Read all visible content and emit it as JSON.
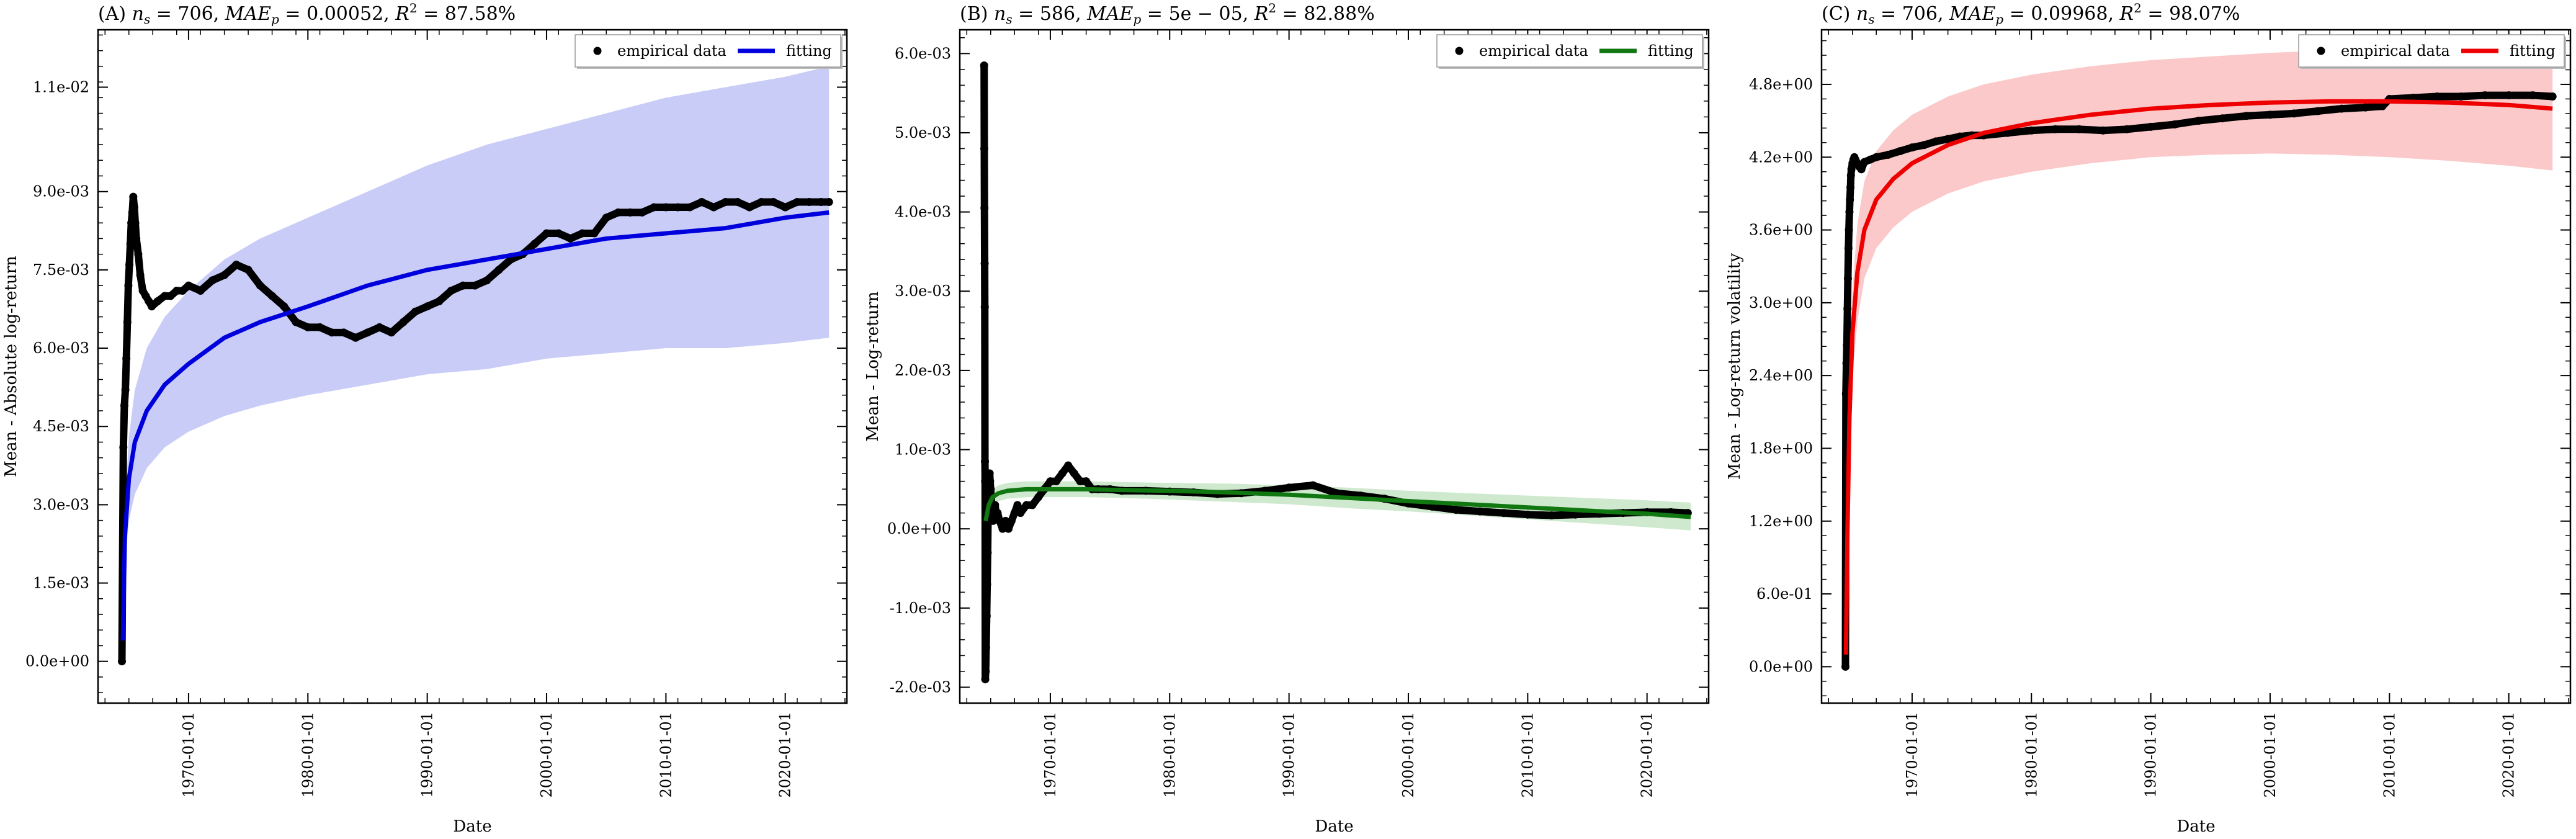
{
  "chart_data": [
    {
      "type": "scatter",
      "panel": "A",
      "title": "(A) n_s = 706, MAE_p = 0.00052, R^2 = 87.58%",
      "title_parts": {
        "prefix": "(A) ",
        "ns": "706",
        "mae": "0.00052",
        "r2": "87.58%"
      },
      "xlabel": "Date",
      "ylabel": "Mean - Absolute log-return",
      "xlim": [
        "1962-06-01",
        "2025-03-01"
      ],
      "ylim": [
        -0.0008,
        0.0121
      ],
      "xticks": [
        "1970-01-01",
        "1980-01-01",
        "1990-01-01",
        "2000-01-01",
        "2010-01-01",
        "2020-01-01"
      ],
      "yticks": [
        0.0,
        0.0015,
        0.003,
        0.0045,
        0.006,
        0.0075,
        0.009,
        0.011
      ],
      "ytick_labels": [
        "0.0e+00",
        "1.5e-03",
        "3.0e-03",
        "4.5e-03",
        "6.0e-03",
        "7.5e-03",
        "9.0e-03",
        "1.1e-02"
      ],
      "legend": {
        "position": "top-right",
        "entries": [
          "empirical data",
          "fitting"
        ]
      },
      "colors": {
        "fit": "#0000dd",
        "band": "#c9ccf7",
        "points": "#000000"
      },
      "grid": false,
      "empirical": {
        "x": [
          "1964-06-01",
          "1964-07-15",
          "1964-08-15",
          "1964-09-15",
          "1964-10-15",
          "1964-11-15",
          "1964-12-15",
          "1965-01-15",
          "1965-02-15",
          "1965-03-15",
          "1965-04-15",
          "1965-05-15",
          "1965-06-15",
          "1965-07-15",
          "1965-08-15",
          "1965-10-15",
          "1965-12-15",
          "1966-03-01",
          "1966-06-01",
          "1966-09-01",
          "1966-12-01",
          "1967-06-01",
          "1968-01-01",
          "1968-07-01",
          "1969-01-01",
          "1969-07-01",
          "1970-01-01",
          "1971-01-01",
          "1972-01-01",
          "1973-01-01",
          "1974-01-01",
          "1975-01-01",
          "1976-01-01",
          "1977-01-01",
          "1978-01-01",
          "1979-01-01",
          "1980-01-01",
          "1981-01-01",
          "1982-01-01",
          "1983-01-01",
          "1984-01-01",
          "1985-01-01",
          "1986-01-01",
          "1987-01-01",
          "1988-01-01",
          "1989-01-01",
          "1990-01-01",
          "1991-01-01",
          "1992-01-01",
          "1993-01-01",
          "1994-01-01",
          "1995-01-01",
          "1996-01-01",
          "1997-01-01",
          "1998-01-01",
          "1999-01-01",
          "2000-01-01",
          "2001-01-01",
          "2002-01-01",
          "2003-01-01",
          "2004-01-01",
          "2005-01-01",
          "2006-01-01",
          "2007-01-01",
          "2008-01-01",
          "2009-01-01",
          "2010-01-01",
          "2011-01-01",
          "2012-01-01",
          "2013-01-01",
          "2014-01-01",
          "2015-01-01",
          "2016-01-01",
          "2017-01-01",
          "2018-01-01",
          "2019-01-01",
          "2020-01-01",
          "2021-01-01",
          "2022-01-01",
          "2023-01-01",
          "2023-09-01"
        ],
        "y": [
          0.0,
          0.0041,
          0.0049,
          0.0052,
          0.0058,
          0.0065,
          0.0072,
          0.0076,
          0.008,
          0.0084,
          0.0086,
          0.0089,
          0.0087,
          0.0084,
          0.0081,
          0.0078,
          0.0074,
          0.0071,
          0.007,
          0.0069,
          0.0068,
          0.0069,
          0.007,
          0.007,
          0.0071,
          0.0071,
          0.0072,
          0.0071,
          0.0073,
          0.0074,
          0.0076,
          0.0075,
          0.0072,
          0.007,
          0.0068,
          0.0065,
          0.0064,
          0.0064,
          0.0063,
          0.0063,
          0.0062,
          0.0063,
          0.0064,
          0.0063,
          0.0065,
          0.0067,
          0.0068,
          0.0069,
          0.0071,
          0.0072,
          0.0072,
          0.0073,
          0.0075,
          0.0077,
          0.0078,
          0.008,
          0.0082,
          0.0082,
          0.0081,
          0.0082,
          0.0082,
          0.0085,
          0.0086,
          0.0086,
          0.0086,
          0.0087,
          0.0087,
          0.0087,
          0.0087,
          0.0088,
          0.0087,
          0.0088,
          0.0088,
          0.0087,
          0.0088,
          0.0088,
          0.0087,
          0.0088,
          0.0088,
          0.0088,
          0.0088
        ]
      },
      "fit": {
        "x": [
          "1964-07-01",
          "1964-09-01",
          "1965-01-01",
          "1965-07-01",
          "1966-07-01",
          "1968-01-01",
          "1970-01-01",
          "1973-01-01",
          "1976-01-01",
          "1980-01-01",
          "1985-01-01",
          "1990-01-01",
          "1995-01-01",
          "2000-01-01",
          "2005-01-01",
          "2010-01-01",
          "2015-01-01",
          "2020-01-01",
          "2023-09-01"
        ],
        "y": [
          0.0004,
          0.0024,
          0.0035,
          0.0042,
          0.0048,
          0.0053,
          0.0057,
          0.0062,
          0.0065,
          0.0068,
          0.0072,
          0.0075,
          0.0077,
          0.0079,
          0.0081,
          0.0082,
          0.0083,
          0.0085,
          0.0086
        ],
        "band_low": [
          0.0,
          0.0018,
          0.0027,
          0.0032,
          0.0037,
          0.0041,
          0.0044,
          0.0047,
          0.0049,
          0.0051,
          0.0053,
          0.0055,
          0.0056,
          0.0058,
          0.0059,
          0.006,
          0.006,
          0.0061,
          0.0062
        ],
        "band_high": [
          0.0009,
          0.003,
          0.0043,
          0.0052,
          0.006,
          0.0066,
          0.0071,
          0.0077,
          0.0081,
          0.0085,
          0.009,
          0.0095,
          0.0099,
          0.0102,
          0.0105,
          0.0108,
          0.011,
          0.0112,
          0.0114
        ]
      }
    },
    {
      "type": "scatter",
      "panel": "B",
      "title": "(B) n_s = 586, MAE_p = 5e-05, R^2 = 82.88%",
      "title_parts": {
        "prefix": "(B) ",
        "ns": "586",
        "mae": "5e − 05",
        "r2": "82.88%"
      },
      "xlabel": "Date",
      "ylabel": "Mean - Log-return",
      "xlim": [
        "1962-06-01",
        "2025-03-01"
      ],
      "ylim": [
        -0.0022,
        0.0063
      ],
      "xticks": [
        "1970-01-01",
        "1980-01-01",
        "1990-01-01",
        "2000-01-01",
        "2010-01-01",
        "2020-01-01"
      ],
      "yticks": [
        -0.002,
        -0.001,
        0.0,
        0.001,
        0.002,
        0.003,
        0.004,
        0.005,
        0.006
      ],
      "ytick_labels": [
        "-2.0e-03",
        "-1.0e-03",
        "0.0e+00",
        "1.0e-03",
        "2.0e-03",
        "3.0e-03",
        "4.0e-03",
        "5.0e-03",
        "6.0e-03"
      ],
      "legend": {
        "position": "top-right",
        "entries": [
          "empirical data",
          "fitting"
        ]
      },
      "colors": {
        "fit": "#117711",
        "band": "#cfe9cf",
        "points": "#000000"
      },
      "grid": false,
      "empirical": {
        "x": [
          "1964-06-15",
          "1964-06-20",
          "1964-06-25",
          "1964-07-01",
          "1964-07-05",
          "1964-07-10",
          "1964-07-15",
          "1964-07-20",
          "1964-08-01",
          "1964-08-15",
          "1964-09-01",
          "1964-09-15",
          "1964-10-01",
          "1964-10-15",
          "1964-11-01",
          "1964-11-15",
          "1964-12-01",
          "1964-12-15",
          "1965-01-01",
          "1965-01-15",
          "1965-02-01",
          "1965-02-15",
          "1965-03-15",
          "1965-04-15",
          "1965-05-15",
          "1965-06-15",
          "1965-08-01",
          "1965-10-01",
          "1966-01-01",
          "1966-04-01",
          "1966-07-01",
          "1966-10-01",
          "1967-01-01",
          "1967-04-01",
          "1967-07-01",
          "1968-01-01",
          "1968-07-01",
          "1969-01-01",
          "1969-07-01",
          "1970-01-01",
          "1970-07-01",
          "1971-01-01",
          "1971-07-01",
          "1972-01-01",
          "1972-07-01",
          "1973-01-01",
          "1973-07-01",
          "1974-01-01",
          "1975-01-01",
          "1976-01-01",
          "1978-01-01",
          "1980-01-01",
          "1982-01-01",
          "1984-01-01",
          "1986-01-01",
          "1988-01-01",
          "1990-01-01",
          "1992-01-01",
          "1994-01-01",
          "1996-01-01",
          "1998-01-01",
          "2000-01-01",
          "2002-01-01",
          "2004-01-01",
          "2006-01-01",
          "2008-01-01",
          "2010-01-01",
          "2012-01-01",
          "2014-01-01",
          "2016-01-01",
          "2018-01-01",
          "2020-01-01",
          "2022-01-01",
          "2023-06-01"
        ],
        "y": [
          0.00585,
          0.0048,
          0.00405,
          0.00335,
          0.0028,
          0.00085,
          0.0006,
          -0.0019,
          -0.0018,
          -0.0015,
          -0.0011,
          -0.0007,
          -0.0003,
          0.0002,
          0.0005,
          0.0006,
          0.0007,
          0.0006,
          0.0005,
          0.0004,
          0.0003,
          0.0002,
          0.0001,
          0.0002,
          0.0003,
          0.0002,
          0.0002,
          0.0001,
          0.0,
          0.0001,
          0.0,
          0.0001,
          0.0002,
          0.0003,
          0.0002,
          0.0003,
          0.0003,
          0.0004,
          0.0005,
          0.0006,
          0.0006,
          0.0007,
          0.0008,
          0.0007,
          0.0006,
          0.0006,
          0.0005,
          0.0005,
          0.0005,
          0.00048,
          0.00048,
          0.00047,
          0.00046,
          0.00044,
          0.00045,
          0.00048,
          0.00052,
          0.00055,
          0.00045,
          0.00042,
          0.00038,
          0.00032,
          0.00028,
          0.00024,
          0.00022,
          0.0002,
          0.00018,
          0.00017,
          0.00018,
          0.00019,
          0.0002,
          0.00021,
          0.00021,
          0.0002
        ]
      },
      "fit": {
        "x": [
          "1964-08-01",
          "1964-11-01",
          "1965-03-01",
          "1965-09-01",
          "1966-06-01",
          "1968-01-01",
          "1970-01-01",
          "1973-01-01",
          "1976-01-01",
          "1980-01-01",
          "1985-01-01",
          "1990-01-01",
          "1995-01-01",
          "2000-01-01",
          "2005-01-01",
          "2010-01-01",
          "2015-01-01",
          "2020-01-01",
          "2023-09-01"
        ],
        "y": [
          0.0001,
          0.0003,
          0.0004,
          0.00045,
          0.00048,
          0.0005,
          0.0005,
          0.0005,
          0.00049,
          0.00048,
          0.00046,
          0.00043,
          0.00039,
          0.00035,
          0.00031,
          0.00027,
          0.00023,
          0.00019,
          0.00015
        ],
        "band_low": [
          0.0,
          0.0002,
          0.0003,
          0.00035,
          0.00038,
          0.0004,
          0.0004,
          0.0004,
          0.00039,
          0.00037,
          0.00034,
          0.00031,
          0.00026,
          0.00022,
          0.00017,
          0.00012,
          7e-05,
          2e-05,
          -2e-05
        ],
        "band_high": [
          0.0002,
          0.0004,
          0.0005,
          0.00055,
          0.00058,
          0.0006,
          0.0006,
          0.0006,
          0.00059,
          0.00058,
          0.00057,
          0.00055,
          0.00052,
          0.00048,
          0.00045,
          0.00042,
          0.00039,
          0.00036,
          0.00033
        ]
      }
    },
    {
      "type": "scatter",
      "panel": "C",
      "title": "(C) n_s = 706, MAE_p = 0.09968, R^2 = 98.07%",
      "title_parts": {
        "prefix": "(C) ",
        "ns": "706",
        "mae": "0.09968",
        "r2": "98.07%"
      },
      "xlabel": "Date",
      "ylabel": "Mean - Log-return volatility",
      "xlim": [
        "1962-06-01",
        "2025-03-01"
      ],
      "ylim": [
        -0.3,
        5.25
      ],
      "xticks": [
        "1970-01-01",
        "1980-01-01",
        "1990-01-01",
        "2000-01-01",
        "2010-01-01",
        "2020-01-01"
      ],
      "yticks": [
        0.0,
        0.6,
        1.2,
        1.8,
        2.4,
        3.0,
        3.6,
        4.2,
        4.8
      ],
      "ytick_labels": [
        "0.0e+00",
        "6.0e-01",
        "1.2e+00",
        "1.8e+00",
        "2.4e+00",
        "3.0e+00",
        "3.6e+00",
        "4.2e+00",
        "4.8e+00"
      ],
      "legend": {
        "position": "top-right",
        "entries": [
          "empirical data",
          "fitting"
        ]
      },
      "colors": {
        "fit": "#ee0000",
        "band": "#fbc9c9",
        "points": "#000000"
      },
      "grid": false,
      "empirical": {
        "x": [
          "1964-06-01",
          "1964-06-15",
          "1964-07-01",
          "1964-07-15",
          "1964-08-01",
          "1964-08-15",
          "1964-09-01",
          "1964-09-15",
          "1964-10-01",
          "1964-10-15",
          "1964-11-01",
          "1964-11-15",
          "1964-12-01",
          "1965-01-01",
          "1965-02-01",
          "1965-03-01",
          "1965-04-01",
          "1965-06-01",
          "1965-08-01",
          "1965-10-01",
          "1966-01-01",
          "1966-07-01",
          "1967-01-01",
          "1968-01-01",
          "1969-01-01",
          "1970-01-01",
          "1971-01-01",
          "1972-01-01",
          "1973-01-01",
          "1974-01-01",
          "1975-01-01",
          "1976-01-01",
          "1978-01-01",
          "1980-01-01",
          "1982-01-01",
          "1984-01-01",
          "1986-01-01",
          "1988-01-01",
          "1990-01-01",
          "1992-01-01",
          "1994-01-01",
          "1996-01-01",
          "1998-01-01",
          "2000-01-01",
          "2002-01-01",
          "2004-01-01",
          "2006-01-01",
          "2008-01-01",
          "2009-06-01",
          "2010-01-01",
          "2012-01-01",
          "2014-01-01",
          "2016-01-01",
          "2018-01-01",
          "2020-01-01",
          "2022-01-01",
          "2023-09-01"
        ],
        "y": [
          0.0,
          2.25,
          2.5,
          2.65,
          2.95,
          3.2,
          3.45,
          3.6,
          3.75,
          3.85,
          3.95,
          4.05,
          4.1,
          4.15,
          4.18,
          4.2,
          4.18,
          4.15,
          4.12,
          4.1,
          4.16,
          4.18,
          4.2,
          4.22,
          4.25,
          4.28,
          4.3,
          4.33,
          4.35,
          4.37,
          4.38,
          4.38,
          4.4,
          4.42,
          4.43,
          4.43,
          4.42,
          4.43,
          4.45,
          4.47,
          4.5,
          4.52,
          4.54,
          4.55,
          4.56,
          4.58,
          4.6,
          4.61,
          4.62,
          4.68,
          4.69,
          4.7,
          4.7,
          4.71,
          4.71,
          4.71,
          4.7
        ]
      },
      "fit": {
        "x": [
          "1964-06-15",
          "1964-08-01",
          "1964-10-01",
          "1965-01-01",
          "1965-06-01",
          "1966-01-01",
          "1967-01-01",
          "1968-06-01",
          "1970-01-01",
          "1973-01-01",
          "1976-01-01",
          "1980-01-01",
          "1985-01-01",
          "1990-01-01",
          "1995-01-01",
          "2000-01-01",
          "2005-01-01",
          "2010-01-01",
          "2015-01-01",
          "2020-01-01",
          "2023-09-01"
        ],
        "y": [
          0.1,
          1.1,
          2.05,
          2.75,
          3.25,
          3.6,
          3.85,
          4.02,
          4.15,
          4.3,
          4.4,
          4.48,
          4.55,
          4.6,
          4.63,
          4.65,
          4.66,
          4.66,
          4.65,
          4.63,
          4.6
        ],
        "band_low": [
          0.0,
          0.9,
          1.75,
          2.4,
          2.85,
          3.2,
          3.45,
          3.62,
          3.75,
          3.9,
          4.0,
          4.08,
          4.15,
          4.2,
          4.22,
          4.23,
          4.22,
          4.2,
          4.17,
          4.13,
          4.09
        ],
        "band_high": [
          0.3,
          1.3,
          2.35,
          3.1,
          3.65,
          4.0,
          4.25,
          4.42,
          4.55,
          4.7,
          4.8,
          4.88,
          4.95,
          5.0,
          5.03,
          5.06,
          5.08,
          5.1,
          5.11,
          5.12,
          5.12
        ]
      }
    }
  ]
}
